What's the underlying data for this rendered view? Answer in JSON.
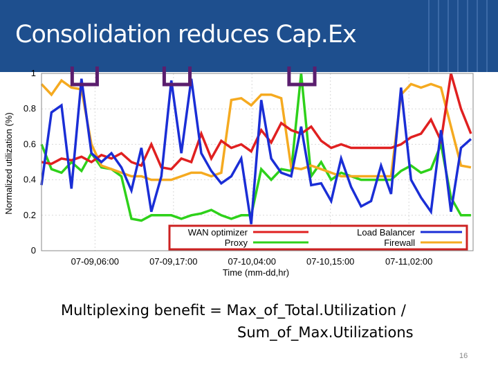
{
  "slide": {
    "title": "Consolidation reduces Cap.Ex",
    "caption_line1": "Multiplexing benefit = Max_of_Total.Utilization /",
    "caption_line2": "Sum_of_Max.Utilizations",
    "slide_number": "16"
  },
  "colors": {
    "banner": "#1e4f8e",
    "highlight_box": "#5b1e6e",
    "legend_border": "#cc2222"
  },
  "chart_data": {
    "type": "line",
    "ylabel": "Normalized utilization (%)",
    "xlabel": "Time (mm-dd,hr)",
    "ylim": [
      0,
      1
    ],
    "y_ticks": [
      "0",
      "0.2",
      "0.4",
      "0.6",
      "0.8",
      "1"
    ],
    "y_tick_values": [
      0,
      0.2,
      0.4,
      0.6,
      0.8,
      1.0
    ],
    "x_ticks": [
      "07-09,06:00",
      "07-09,17:00",
      "07-10,04:00",
      "07-10,15:00",
      "07-11,02:00"
    ],
    "x_tick_positions": [
      4,
      15,
      26,
      37,
      48
    ],
    "xlim": [
      -3.5,
      57
    ],
    "grid": true,
    "legend": "bottom (inside plot, boxed)",
    "highlight_windows": [
      [
        0.8,
        4.3
      ],
      [
        13.7,
        17.3
      ],
      [
        31.2,
        34.8
      ],
      [
        55.5,
        59
      ]
    ],
    "series": [
      {
        "name": "WAN optimizer",
        "color": "#e02020",
        "x": [
          -3.5,
          -2.1,
          -0.7,
          0.7,
          2.1,
          3.5,
          4.9,
          6.3,
          7.7,
          9.1,
          10.5,
          11.9,
          13.3,
          14.7,
          16.1,
          17.5,
          18.9,
          20.3,
          21.7,
          23.1,
          24.5,
          25.9,
          27.3,
          28.7,
          30.1,
          31.5,
          32.9,
          34.3,
          35.7,
          37.1,
          38.5,
          39.9,
          41.3,
          42.7,
          44.1,
          45.5,
          46.9,
          48.3,
          49.7,
          51.1,
          52.5,
          53.9,
          55.3,
          56.7
        ],
        "values": [
          0.5,
          0.49,
          0.52,
          0.51,
          0.53,
          0.5,
          0.54,
          0.52,
          0.55,
          0.5,
          0.48,
          0.6,
          0.47,
          0.46,
          0.52,
          0.5,
          0.66,
          0.52,
          0.62,
          0.58,
          0.6,
          0.56,
          0.68,
          0.61,
          0.72,
          0.68,
          0.66,
          0.7,
          0.62,
          0.58,
          0.6,
          0.58,
          0.58,
          0.58,
          0.58,
          0.58,
          0.6,
          0.64,
          0.66,
          0.74,
          0.62,
          1.0,
          0.8,
          0.66
        ]
      },
      {
        "name": "Load Balancer",
        "color": "#1a2ed6",
        "x": [
          -3.5,
          -2.1,
          -0.7,
          0.7,
          2.1,
          3.5,
          4.9,
          6.3,
          7.7,
          9.1,
          10.5,
          11.9,
          13.3,
          14.7,
          16.1,
          17.5,
          18.9,
          20.3,
          21.7,
          23.1,
          24.5,
          25.9,
          27.3,
          28.7,
          30.1,
          31.5,
          32.9,
          34.3,
          35.7,
          37.1,
          38.5,
          39.9,
          41.3,
          42.7,
          44.1,
          45.5,
          46.9,
          48.3,
          49.7,
          51.1,
          52.5,
          53.9,
          55.3,
          56.7
        ],
        "values": [
          0.37,
          0.78,
          0.82,
          0.35,
          0.97,
          0.55,
          0.5,
          0.55,
          0.47,
          0.34,
          0.58,
          0.22,
          0.42,
          0.96,
          0.55,
          0.97,
          0.55,
          0.45,
          0.38,
          0.42,
          0.52,
          0.15,
          0.85,
          0.52,
          0.44,
          0.42,
          0.7,
          0.37,
          0.38,
          0.28,
          0.52,
          0.36,
          0.25,
          0.28,
          0.48,
          0.32,
          0.92,
          0.4,
          0.3,
          0.22,
          0.68,
          0.22,
          0.58,
          0.63
        ]
      },
      {
        "name": "Proxy",
        "color": "#2ed11a",
        "x": [
          -3.5,
          -2.1,
          -0.7,
          0.7,
          2.1,
          3.5,
          4.9,
          6.3,
          7.7,
          9.1,
          10.5,
          11.9,
          13.3,
          14.7,
          16.1,
          17.5,
          18.9,
          20.3,
          21.7,
          23.1,
          24.5,
          25.9,
          27.3,
          28.7,
          30.1,
          31.5,
          32.9,
          34.3,
          35.7,
          37.1,
          38.5,
          39.9,
          41.3,
          42.7,
          44.1,
          45.5,
          46.9,
          48.3,
          49.7,
          51.1,
          52.5,
          53.9,
          55.3,
          56.7
        ],
        "values": [
          0.6,
          0.46,
          0.44,
          0.5,
          0.45,
          0.55,
          0.47,
          0.46,
          0.42,
          0.18,
          0.17,
          0.2,
          0.2,
          0.2,
          0.18,
          0.2,
          0.21,
          0.23,
          0.2,
          0.18,
          0.2,
          0.2,
          0.46,
          0.4,
          0.46,
          0.45,
          1.0,
          0.42,
          0.5,
          0.4,
          0.44,
          0.42,
          0.4,
          0.4,
          0.4,
          0.4,
          0.45,
          0.48,
          0.44,
          0.46,
          0.6,
          0.3,
          0.2,
          0.2
        ]
      },
      {
        "name": "Firewall",
        "color": "#f5aa20",
        "x": [
          -3.5,
          -2.1,
          -0.7,
          0.7,
          2.1,
          3.5,
          4.9,
          6.3,
          7.7,
          9.1,
          10.5,
          11.9,
          13.3,
          14.7,
          16.1,
          17.5,
          18.9,
          20.3,
          21.7,
          23.1,
          24.5,
          25.9,
          27.3,
          28.7,
          30.1,
          31.5,
          32.9,
          34.3,
          35.7,
          37.1,
          38.5,
          39.9,
          41.3,
          42.7,
          44.1,
          45.5,
          46.9,
          48.3,
          49.7,
          51.1,
          52.5,
          53.9,
          55.3,
          56.7
        ],
        "values": [
          0.94,
          0.88,
          0.96,
          0.92,
          0.91,
          0.6,
          0.48,
          0.46,
          0.44,
          0.42,
          0.42,
          0.4,
          0.4,
          0.4,
          0.42,
          0.44,
          0.44,
          0.42,
          0.44,
          0.85,
          0.86,
          0.82,
          0.88,
          0.88,
          0.86,
          0.47,
          0.46,
          0.48,
          0.46,
          0.44,
          0.42,
          0.42,
          0.42,
          0.42,
          0.42,
          0.42,
          0.88,
          0.94,
          0.92,
          0.94,
          0.92,
          0.7,
          0.48,
          0.47
        ]
      }
    ]
  }
}
